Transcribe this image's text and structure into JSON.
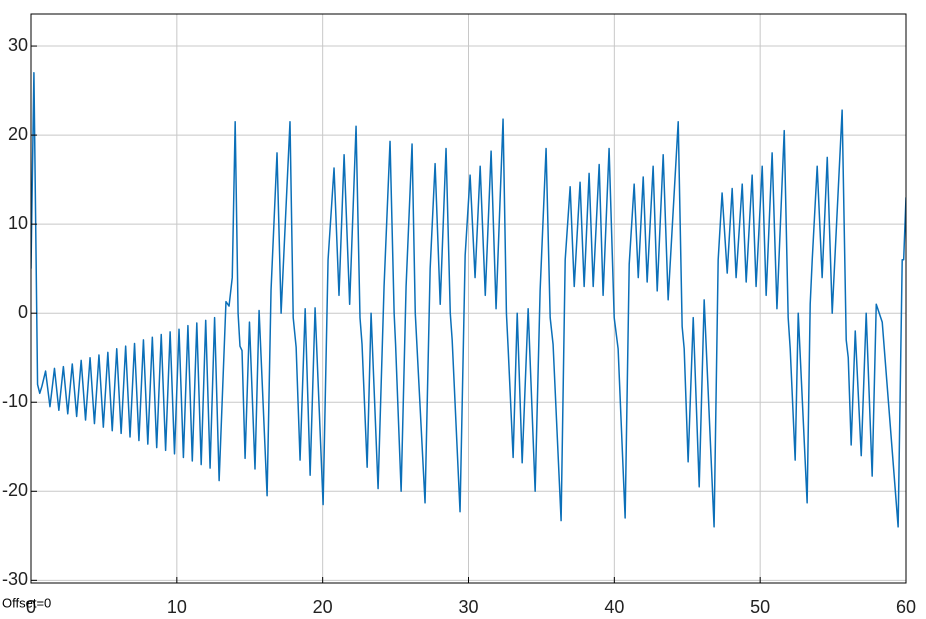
{
  "chart_data": {
    "type": "line",
    "annotation": "Offset=0",
    "xlim": [
      0,
      60
    ],
    "xticks": [
      0,
      10,
      20,
      30,
      40,
      50,
      60
    ],
    "ylim": [
      -30.3,
      33.6
    ],
    "yticks": [
      -30,
      -20,
      -10,
      0,
      10,
      20,
      30
    ],
    "grid": true,
    "series": [
      {
        "color": "#0b6fb8",
        "x": [
          0,
          0.2,
          0.45,
          0.6,
          0.75,
          1.0,
          1.3,
          1.61,
          1.91,
          2.22,
          2.52,
          2.83,
          3.13,
          3.44,
          3.74,
          4.05,
          4.35,
          4.66,
          4.96,
          5.27,
          5.57,
          5.88,
          6.18,
          6.49,
          6.79,
          7.1,
          7.4,
          7.71,
          8.01,
          8.32,
          8.62,
          8.93,
          9.23,
          9.54,
          9.84,
          10.15,
          10.45,
          10.76,
          11.06,
          11.37,
          11.67,
          11.98,
          12.28,
          12.59,
          12.9,
          13.37,
          13.58,
          13.8,
          14.0,
          14.2,
          14.33,
          14.47,
          14.68,
          14.98,
          15.36,
          15.64,
          16.19,
          16.46,
          16.87,
          17.15,
          17.76,
          17.98,
          18.18,
          18.45,
          18.8,
          19.14,
          19.48,
          20.03,
          20.37,
          20.78,
          21.12,
          21.47,
          21.85,
          22.29,
          22.56,
          22.7,
          23.05,
          23.32,
          23.8,
          24.21,
          24.62,
          24.9,
          25.0,
          25.38,
          25.72,
          26.13,
          26.35,
          26.47,
          27.02,
          27.37,
          27.71,
          28.06,
          28.46,
          28.75,
          28.88,
          29.42,
          29.77,
          30.11,
          30.45,
          30.8,
          31.15,
          31.55,
          31.89,
          32.37,
          32.6,
          32.72,
          33.06,
          33.34,
          33.68,
          34.09,
          34.57,
          34.91,
          35.32,
          35.6,
          35.8,
          36.35,
          36.63,
          36.97,
          37.25,
          37.65,
          37.93,
          38.27,
          38.55,
          38.96,
          39.23,
          39.64,
          39.99,
          40.26,
          40.74,
          41.02,
          41.36,
          41.64,
          41.98,
          42.25,
          42.66,
          42.94,
          43.35,
          43.69,
          44.38,
          44.65,
          44.79,
          45.06,
          45.41,
          45.82,
          46.16,
          46.84,
          47.12,
          47.39,
          47.74,
          48.08,
          48.35,
          48.77,
          49.04,
          49.45,
          49.72,
          50.14,
          50.41,
          50.82,
          51.15,
          51.65,
          51.92,
          52.06,
          52.4,
          52.61,
          53.22,
          53.43,
          53.57,
          53.91,
          54.25,
          54.6,
          54.94,
          55.62,
          55.9,
          56.04,
          56.24,
          56.52,
          56.93,
          57.27,
          57.68,
          57.96,
          58.37,
          59.46,
          59.74,
          59.84,
          60
        ],
        "values": [
          5,
          27,
          -8,
          -9,
          -8.2,
          -6.5,
          -10.5,
          -6.2,
          -10.9,
          -6.0,
          -11.3,
          -5.7,
          -11.6,
          -5.3,
          -12.0,
          -5.0,
          -12.4,
          -4.7,
          -12.8,
          -4.4,
          -13.2,
          -4.0,
          -13.5,
          -3.7,
          -13.9,
          -3.4,
          -14.3,
          -3.0,
          -14.7,
          -2.7,
          -15.1,
          -2.4,
          -15.4,
          -2.1,
          -15.8,
          -1.8,
          -16.2,
          -1.4,
          -16.6,
          -1.1,
          -17.0,
          -0.8,
          -17.4,
          -0.5,
          -18.8,
          1.3,
          0.8,
          4,
          21.5,
          0,
          -3.7,
          -4.2,
          -16.3,
          -1,
          -17.5,
          0.3,
          -20.5,
          2.6,
          18,
          0,
          21.5,
          -0.5,
          -3.8,
          -16.5,
          0.5,
          -18.2,
          0.6,
          -21.5,
          6,
          16.3,
          2,
          17.8,
          1,
          21,
          -0.5,
          -3.5,
          -17.3,
          0,
          -19.7,
          3,
          19.3,
          0,
          -3.5,
          -20,
          3,
          19,
          0,
          -3.8,
          -21.3,
          5,
          16.8,
          1,
          18.5,
          0,
          -3,
          -22.3,
          6.5,
          15.5,
          4,
          16.5,
          2,
          18.2,
          0.5,
          21.8,
          0,
          -4,
          -16.2,
          0,
          -16.8,
          0.5,
          -20,
          2.5,
          18.5,
          -0.5,
          -3.5,
          -23.3,
          6,
          14.2,
          3,
          14.7,
          3,
          15.7,
          3,
          16.7,
          2,
          18.5,
          -0.5,
          -4,
          -23,
          5.5,
          14.5,
          4,
          15.3,
          3.5,
          16.5,
          2.5,
          17.8,
          1.5,
          21.5,
          -1.5,
          -4,
          -16.7,
          -0.5,
          -19.5,
          1.5,
          -24,
          6,
          13.5,
          4.5,
          14,
          4,
          14.5,
          3.5,
          15.5,
          3,
          16.5,
          2,
          18,
          0.5,
          20.5,
          -0.5,
          -4,
          -16.5,
          0,
          -21.3,
          1,
          6,
          16.5,
          4,
          17.5,
          0,
          22.8,
          -3,
          -5,
          -14.8,
          -2,
          -16,
          0,
          -18.3,
          1,
          -1,
          -24,
          6,
          6,
          13
        ]
      }
    ]
  }
}
